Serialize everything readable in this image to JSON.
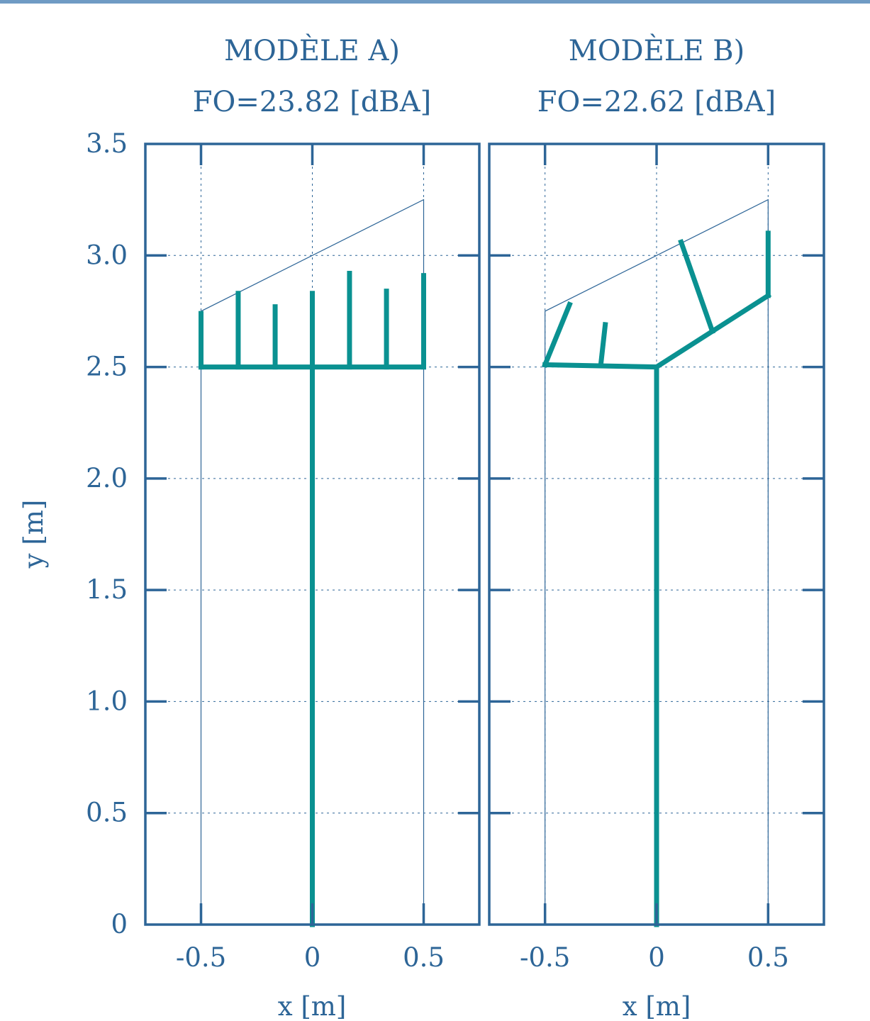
{
  "chart_data": [
    {
      "type": "line",
      "title": "MODÈLE A)",
      "subtitle": "FO=23.82 [dBA]",
      "xlabel": "x [m]",
      "ylabel": "y [m]",
      "xlim": [
        -0.75,
        0.75
      ],
      "ylim": [
        0,
        3.5
      ],
      "xticks": [
        -0.5,
        0,
        0.5
      ],
      "xtick_labels": [
        "-0.5",
        "0",
        "0.5"
      ],
      "yticks": [
        0,
        0.5,
        1.0,
        1.5,
        2.0,
        2.5,
        3.0,
        3.5
      ],
      "ytick_labels": [
        "0",
        "0.5",
        "1.0",
        "1.5",
        "2.0",
        "2.5",
        "3.0",
        "3.5"
      ],
      "grid": true,
      "outline": {
        "name": "",
        "points": [
          [
            -0.5,
            0
          ],
          [
            -0.5,
            2.75
          ],
          [
            0.5,
            3.25
          ],
          [
            0.5,
            0
          ]
        ]
      },
      "series": [
        {
          "name": "",
          "points": [
            [
              0,
              0
            ],
            [
              0,
              2.5
            ]
          ]
        },
        {
          "name": "",
          "points": [
            [
              -0.5,
              2.5
            ],
            [
              0.5,
              2.5
            ]
          ]
        },
        {
          "name": "",
          "points": [
            [
              -0.5,
              2.5
            ],
            [
              -0.5,
              2.74
            ]
          ]
        },
        {
          "name": "",
          "points": [
            [
              -0.333,
              2.5
            ],
            [
              -0.333,
              2.83
            ]
          ]
        },
        {
          "name": "",
          "points": [
            [
              -0.167,
              2.5
            ],
            [
              -0.167,
              2.77
            ]
          ]
        },
        {
          "name": "",
          "points": [
            [
              0,
              2.5
            ],
            [
              0,
              2.83
            ]
          ]
        },
        {
          "name": "",
          "points": [
            [
              0.167,
              2.5
            ],
            [
              0.167,
              2.92
            ]
          ]
        },
        {
          "name": "",
          "points": [
            [
              0.333,
              2.5
            ],
            [
              0.333,
              2.84
            ]
          ]
        },
        {
          "name": "",
          "points": [
            [
              0.5,
              2.5
            ],
            [
              0.5,
              2.91
            ]
          ]
        }
      ]
    },
    {
      "type": "line",
      "title": "MODÈLE B)",
      "subtitle": "FO=22.62 [dBA]",
      "xlabel": "x [m]",
      "ylabel": "",
      "xlim": [
        -0.75,
        0.75
      ],
      "ylim": [
        0,
        3.5
      ],
      "xticks": [
        -0.5,
        0,
        0.5
      ],
      "xtick_labels": [
        "-0.5",
        "0",
        "0.5"
      ],
      "yticks": [
        0,
        0.5,
        1.0,
        1.5,
        2.0,
        2.5,
        3.0,
        3.5
      ],
      "ytick_labels": [],
      "grid": true,
      "outline": {
        "name": "",
        "points": [
          [
            -0.5,
            0
          ],
          [
            -0.5,
            2.75
          ],
          [
            0.5,
            3.25
          ],
          [
            0.5,
            0
          ]
        ]
      },
      "series": [
        {
          "name": "",
          "points": [
            [
              0,
              0
            ],
            [
              0,
              2.5
            ]
          ]
        },
        {
          "name": "",
          "points": [
            [
              0,
              2.5
            ],
            [
              -0.5,
              2.51
            ]
          ]
        },
        {
          "name": "",
          "points": [
            [
              0,
              2.5
            ],
            [
              0.5,
              2.82
            ]
          ]
        },
        {
          "name": "",
          "points": [
            [
              -0.5,
              2.51
            ],
            [
              -0.39,
              2.78
            ]
          ]
        },
        {
          "name": "",
          "points": [
            [
              -0.25,
              2.51
            ],
            [
              -0.23,
              2.69
            ]
          ]
        },
        {
          "name": "",
          "points": [
            [
              0.25,
              2.66
            ],
            [
              0.11,
              3.06
            ]
          ]
        },
        {
          "name": "",
          "points": [
            [
              0.5,
              2.82
            ],
            [
              0.5,
              3.1
            ]
          ]
        }
      ]
    }
  ],
  "colors": {
    "frame": "#2d6597",
    "branch": "#0a9191",
    "grid": "#2d6597",
    "text": "#2d6597",
    "top_rule": "#6f9bc4"
  }
}
